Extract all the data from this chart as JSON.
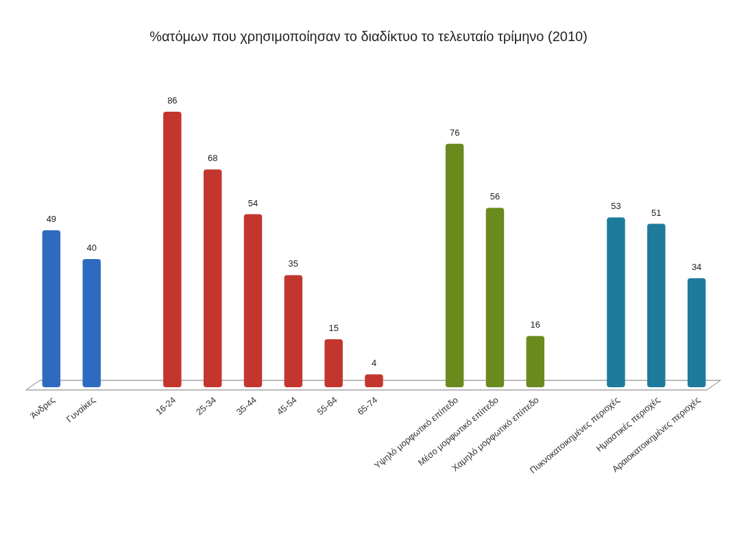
{
  "chart_data": {
    "type": "bar",
    "title": "%ατόμων που χρησιμοποίησαν το διαδίκτυο το τελευταίο τρίμηνο (2010)",
    "categories": [
      "Άνδρες",
      "Γυναίκες",
      null,
      "16-24",
      "25-34",
      "35-44",
      "45-54",
      "55-64",
      "65-74",
      null,
      "Υψηλό μορφωτικό επίπεδο",
      "Μέσο μορφωτικό επίπεδο",
      "Χαμηλό μορφωτικό επίπεδο",
      null,
      "Πυκνοκατοικημένες περιοχές",
      "Ημιαστικές περιοχές",
      "Αραιοκατοικημένες περιοχές"
    ],
    "values": [
      49,
      40,
      null,
      86,
      68,
      54,
      35,
      15,
      4,
      null,
      76,
      56,
      16,
      null,
      53,
      51,
      34
    ],
    "colors": [
      "#2e6bc0",
      "#2e6bc0",
      null,
      "#c3362e",
      "#c3362e",
      "#c3362e",
      "#c3362e",
      "#c3362e",
      "#c3362e",
      null,
      "#6b8a1e",
      "#6b8a1e",
      "#6b8a1e",
      null,
      "#1f7b9c",
      "#1f7b9c",
      "#1f7b9c"
    ],
    "data_labels": true
  }
}
